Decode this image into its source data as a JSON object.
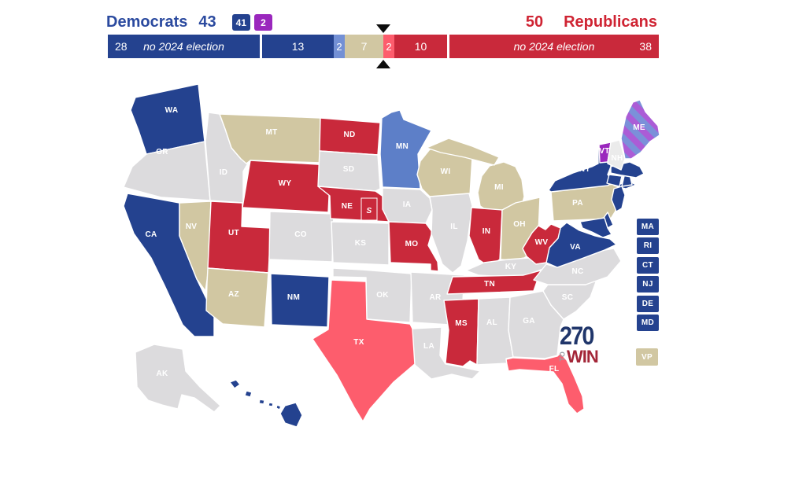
{
  "header": {
    "democrats_label": "Democrats",
    "democrats_total": "43",
    "democrats_color": "#2b4a9f",
    "dem_badges": [
      {
        "text": "41",
        "color": "#24428f"
      },
      {
        "text": "2",
        "color": "#9a27bd"
      }
    ],
    "republicans_total": "50",
    "republicans_label": "Republicans",
    "republicans_color": "#cf2433"
  },
  "bar": {
    "seats_total": 100,
    "majority_seat": 50,
    "segments": [
      {
        "id": "dem-no-election",
        "count": 28,
        "text": "no 2024 election",
        "color": "#24428f",
        "gap_after": true
      },
      {
        "id": "dem-safe",
        "count": 13,
        "color": "#24428f"
      },
      {
        "id": "dem-likely",
        "count": 2,
        "color": "#7390d5"
      },
      {
        "id": "tossup",
        "count": 7,
        "color": "#d1c7a2"
      },
      {
        "id": "rep-lean",
        "count": 2,
        "color": "#fd5d6d"
      },
      {
        "id": "rep-likely",
        "count": 10,
        "color": "#c9293b",
        "gap_after": true
      },
      {
        "id": "rep-no-election",
        "count": 38,
        "text": "no 2024 election",
        "color": "#c9293b"
      }
    ]
  },
  "map": {
    "category_colors": {
      "safe_dem": "#24428f",
      "likely_dem": "#5d7fc8",
      "tossup": "#d1c7a2",
      "lean_rep": "#fd5d6d",
      "safe_rep": "#c9293b",
      "no_election": "#dcdbdd",
      "no_election_light": "#ebebeb",
      "independent": "#9a27bd",
      "stripe_blue": "#7b90d9",
      "stripe_purple": "#ab5cd6"
    },
    "label_color_default": "#ffffff",
    "nebraska_special_label": "S",
    "states": [
      {
        "id": "WA",
        "label": "WA",
        "category": "safe_dem"
      },
      {
        "id": "OR",
        "label": "OR",
        "category": "no_election"
      },
      {
        "id": "CA",
        "label": "CA",
        "category": "safe_dem"
      },
      {
        "id": "NV",
        "label": "NV",
        "category": "tossup"
      },
      {
        "id": "ID",
        "label": "ID",
        "category": "no_election"
      },
      {
        "id": "MT",
        "label": "MT",
        "category": "tossup"
      },
      {
        "id": "WY",
        "label": "WY",
        "category": "safe_rep"
      },
      {
        "id": "UT",
        "label": "UT",
        "category": "safe_rep"
      },
      {
        "id": "CO",
        "label": "CO",
        "category": "no_election"
      },
      {
        "id": "AZ",
        "label": "AZ",
        "category": "tossup"
      },
      {
        "id": "NM",
        "label": "NM",
        "category": "safe_dem"
      },
      {
        "id": "ND",
        "label": "ND",
        "category": "safe_rep"
      },
      {
        "id": "SD",
        "label": "SD",
        "category": "no_election"
      },
      {
        "id": "NE",
        "label": "NE",
        "category": "safe_rep"
      },
      {
        "id": "KS",
        "label": "KS",
        "category": "no_election"
      },
      {
        "id": "OK",
        "label": "OK",
        "category": "no_election"
      },
      {
        "id": "TX",
        "label": "TX",
        "category": "lean_rep"
      },
      {
        "id": "MN",
        "label": "MN",
        "category": "likely_dem"
      },
      {
        "id": "IA",
        "label": "IA",
        "category": "no_election"
      },
      {
        "id": "MO",
        "label": "MO",
        "category": "safe_rep"
      },
      {
        "id": "AR",
        "label": "AR",
        "category": "no_election"
      },
      {
        "id": "LA",
        "label": "LA",
        "category": "no_election"
      },
      {
        "id": "WI",
        "label": "WI",
        "category": "tossup"
      },
      {
        "id": "IL",
        "label": "IL",
        "category": "no_election"
      },
      {
        "id": "MI",
        "label": "MI",
        "category": "tossup"
      },
      {
        "id": "IN",
        "label": "IN",
        "category": "safe_rep"
      },
      {
        "id": "OH",
        "label": "OH",
        "category": "tossup"
      },
      {
        "id": "KY",
        "label": "KY",
        "category": "no_election"
      },
      {
        "id": "TN",
        "label": "TN",
        "category": "safe_rep"
      },
      {
        "id": "MS",
        "label": "MS",
        "category": "safe_rep"
      },
      {
        "id": "AL",
        "label": "AL",
        "category": "no_election"
      },
      {
        "id": "GA",
        "label": "GA",
        "category": "no_election"
      },
      {
        "id": "FL",
        "label": "FL",
        "category": "lean_rep"
      },
      {
        "id": "SC",
        "label": "SC",
        "category": "no_election"
      },
      {
        "id": "NC",
        "label": "NC",
        "category": "no_election"
      },
      {
        "id": "VA",
        "label": "VA",
        "category": "safe_dem"
      },
      {
        "id": "WV",
        "label": "WV",
        "category": "safe_rep"
      },
      {
        "id": "PA",
        "label": "PA",
        "category": "tossup"
      },
      {
        "id": "NY",
        "label": "NY",
        "category": "safe_dem"
      },
      {
        "id": "NJ",
        "label": "",
        "category": "safe_dem"
      },
      {
        "id": "DE",
        "label": "",
        "category": "safe_dem"
      },
      {
        "id": "MD",
        "label": "",
        "category": "safe_dem"
      },
      {
        "id": "CT",
        "label": "",
        "category": "safe_dem"
      },
      {
        "id": "RI",
        "label": "",
        "category": "safe_dem"
      },
      {
        "id": "MA",
        "label": "",
        "category": "safe_dem"
      },
      {
        "id": "VT",
        "label": "VT",
        "category": "independent"
      },
      {
        "id": "NH",
        "label": "NH",
        "category": "no_election_light"
      },
      {
        "id": "ME",
        "label": "ME",
        "category": "independent_stripes"
      },
      {
        "id": "AK",
        "label": "AK",
        "category": "no_election"
      },
      {
        "id": "HI",
        "label": "HI",
        "category": "safe_dem",
        "label_color": "#24428f"
      }
    ]
  },
  "side_boxes": [
    {
      "label": "MA",
      "category": "safe_dem"
    },
    {
      "label": "RI",
      "category": "safe_dem"
    },
    {
      "label": "CT",
      "category": "safe_dem"
    },
    {
      "label": "NJ",
      "category": "safe_dem"
    },
    {
      "label": "DE",
      "category": "safe_dem"
    },
    {
      "label": "MD",
      "category": "safe_dem"
    },
    {
      "label": "VP",
      "category": "tossup"
    }
  ],
  "logo": {
    "number": "270",
    "to": "TO",
    "win": "WIN",
    "number_color": "#20366b",
    "to_color": "#9aa0a8",
    "win_color": "#a32638"
  }
}
